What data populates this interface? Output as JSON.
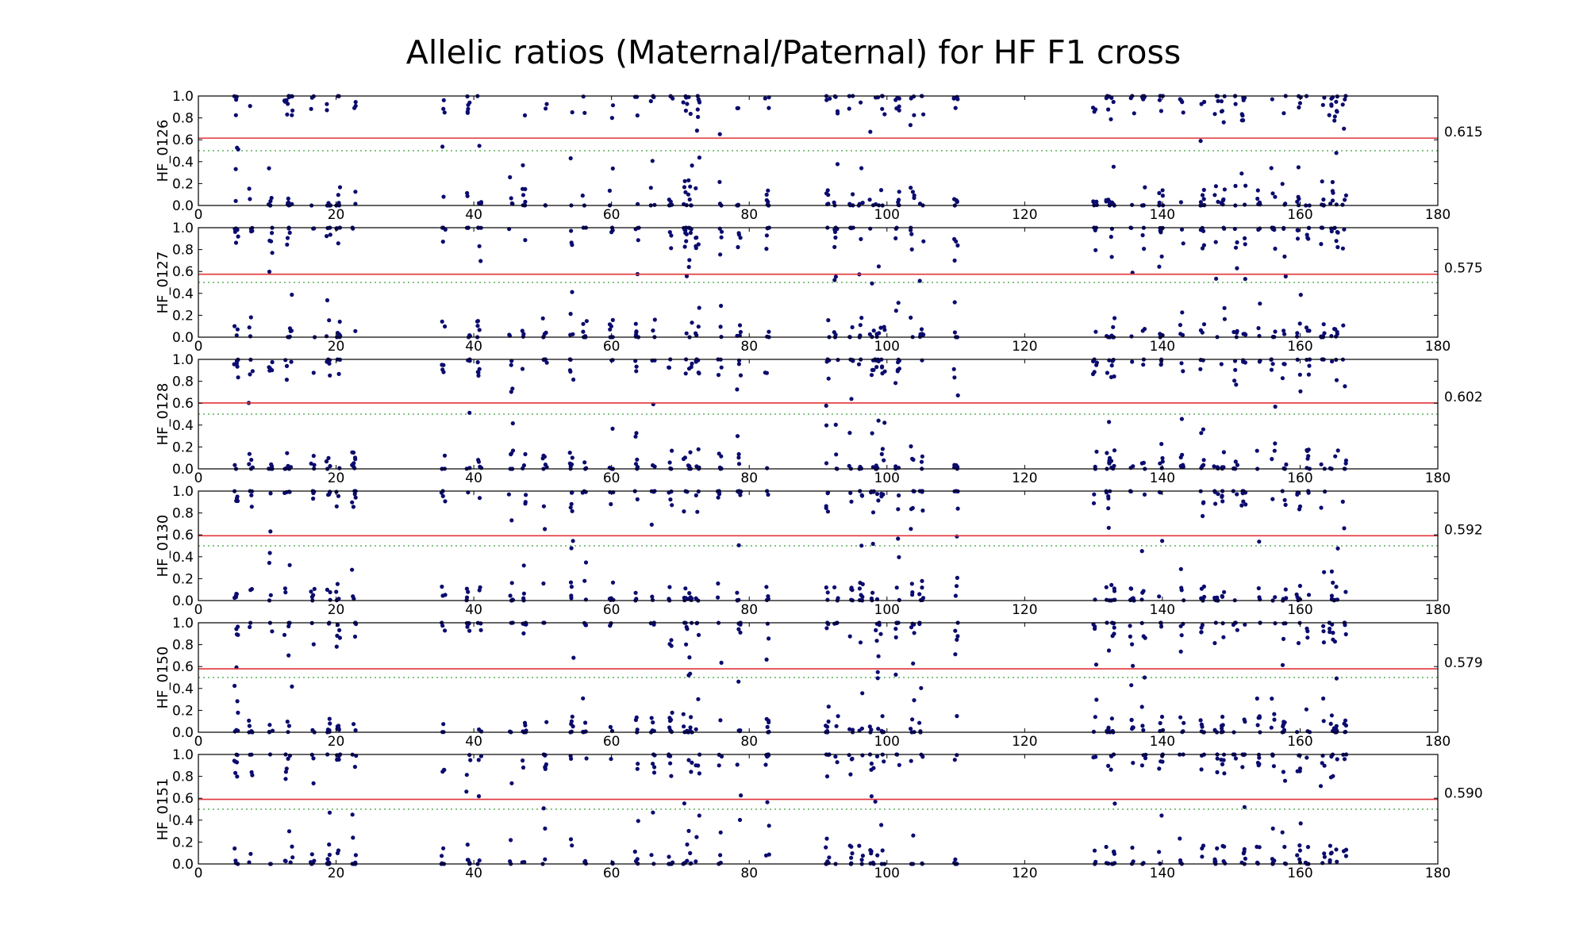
{
  "chart_data": {
    "type": "scatter",
    "title": "Allelic ratios (Maternal/Paternal) for HF F1 cross",
    "xlim": [
      0,
      180
    ],
    "ylim": [
      0,
      1
    ],
    "x_ticks": [
      "0",
      "20",
      "40",
      "60",
      "80",
      "100",
      "120",
      "140",
      "160",
      "180"
    ],
    "y_ticks": [
      "0.0",
      "0.2",
      "0.4",
      "0.6",
      "0.8",
      "1.0"
    ],
    "reference_line": 0.5,
    "grid": false,
    "colors": {
      "points": "#0b0b6e",
      "mean_line": "#e0343a",
      "reference_line": "#3aa03a",
      "axes": "#000000"
    },
    "clusters": [
      5.5,
      7.6,
      10.5,
      12.8,
      13.4,
      16.6,
      18.9,
      20.3,
      22.6,
      35.6,
      39.2,
      40.8,
      45.4,
      47.3,
      50.3,
      54.2,
      56.1,
      60.0,
      63.7,
      66.0,
      68.6,
      70.7,
      71.4,
      72.5,
      75.7,
      78.5,
      82.6,
      91.4,
      92.6,
      94.8,
      96.2,
      97.8,
      98.6,
      99.4,
      101.5,
      103.7,
      105.0,
      110.0,
      130.2,
      132.1,
      132.8,
      135.6,
      137.3,
      139.8,
      142.8,
      145.8,
      147.8,
      148.8,
      150.6,
      151.8,
      154.0,
      156.1,
      157.7,
      159.8,
      161.1,
      163.3,
      164.5,
      165.2,
      166.4
    ],
    "panels": [
      {
        "name": "HF_0126",
        "mean": 0.615,
        "mean_label": "0.615"
      },
      {
        "name": "HF_0127",
        "mean": 0.575,
        "mean_label": "0.575"
      },
      {
        "name": "HF_0128",
        "mean": 0.602,
        "mean_label": "0.602"
      },
      {
        "name": "HF_0130",
        "mean": 0.592,
        "mean_label": "0.592"
      },
      {
        "name": "HF_0150",
        "mean": 0.579,
        "mean_label": "0.579"
      },
      {
        "name": "HF_0151",
        "mean": 0.59,
        "mean_label": "0.590"
      }
    ]
  }
}
